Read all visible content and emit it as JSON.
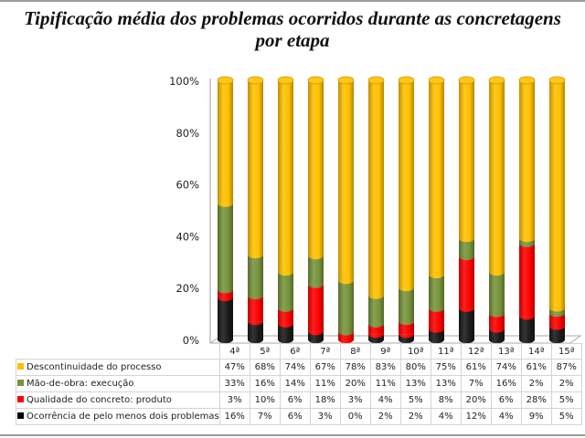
{
  "chart_data": {
    "type": "bar",
    "stacked": true,
    "percent_stacked": true,
    "style": "3d-cylinder",
    "title": "Tipificação média dos problemas ocorridos durante as concretagens por etapa",
    "title_lines": [
      "Tipificação média dos problemas ocorridos durante as concretagens",
      "por etapa"
    ],
    "xlabel": "",
    "ylabel": "",
    "ylim": [
      0,
      100
    ],
    "y_ticks": [
      "0%",
      "20%",
      "40%",
      "60%",
      "80%",
      "100%"
    ],
    "y_tick_values": [
      0,
      20,
      40,
      60,
      80,
      100
    ],
    "categories": [
      "4ª",
      "5ª",
      "6ª",
      "7ª",
      "8ª",
      "9ª",
      "10ª",
      "11ª",
      "12ª",
      "13ª",
      "14ª",
      "15ª"
    ],
    "legend_placement": "data-table-left",
    "series": [
      {
        "name": "Descontinuidade do processo",
        "color": "#FFC000",
        "values": [
          47,
          68,
          74,
          67,
          78,
          83,
          80,
          75,
          61,
          74,
          61,
          87
        ],
        "labels": [
          "47%",
          "68%",
          "74%",
          "67%",
          "78%",
          "83%",
          "80%",
          "75%",
          "61%",
          "74%",
          "61%",
          "87%"
        ]
      },
      {
        "name": "Mão-de-obra: execução",
        "color": "#77933C",
        "values": [
          33,
          16,
          14,
          11,
          20,
          11,
          13,
          13,
          7,
          16,
          2,
          2
        ],
        "labels": [
          "33%",
          "16%",
          "14%",
          "11%",
          "20%",
          "11%",
          "13%",
          "13%",
          "7%",
          "16%",
          "2%",
          "2%"
        ]
      },
      {
        "name": "Qualidade do concreto: produto",
        "color": "#FF0000",
        "values": [
          3,
          10,
          6,
          18,
          3,
          4,
          5,
          8,
          20,
          6,
          28,
          5
        ],
        "labels": [
          "3%",
          "10%",
          "6%",
          "18%",
          "3%",
          "4%",
          "5%",
          "8%",
          "20%",
          "6%",
          "28%",
          "5%"
        ]
      },
      {
        "name": "Ocorrência de pelo menos dois problemas",
        "color": "#000000",
        "values": [
          16,
          7,
          6,
          3,
          0,
          2,
          2,
          4,
          12,
          4,
          9,
          5
        ],
        "labels": [
          "16%",
          "7%",
          "6%",
          "3%",
          "0%",
          "2%",
          "2%",
          "4%",
          "12%",
          "4%",
          "9%",
          "5%"
        ]
      }
    ],
    "stack_order_bottom_to_top": [
      "Ocorrência de pelo menos dois problemas",
      "Qualidade do concreto: produto",
      "Mão-de-obra: execução",
      "Descontinuidade do processo"
    ],
    "grid": false
  }
}
